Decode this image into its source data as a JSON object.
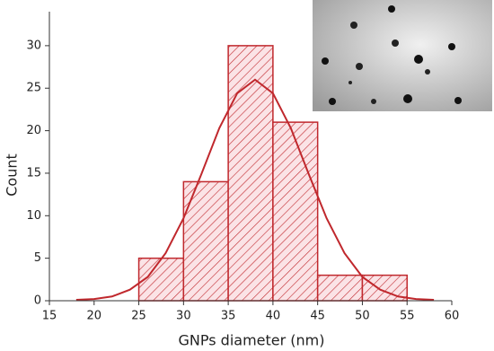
{
  "chart_data": {
    "type": "histogram",
    "xlabel": "GNPs diameter (nm)",
    "ylabel": "Count",
    "bins": [
      25,
      30,
      35,
      40,
      45,
      50,
      55
    ],
    "values": [
      5,
      14,
      30,
      21,
      3,
      3
    ],
    "color": "#c0282d",
    "xlim": [
      15,
      60
    ],
    "xticks": [
      15,
      20,
      25,
      30,
      35,
      40,
      45,
      50,
      55,
      60
    ],
    "ylim": [
      0,
      34
    ],
    "yticks": [
      0,
      5,
      10,
      15,
      20,
      25,
      30
    ],
    "fit": {
      "x": [
        18,
        20,
        22,
        24,
        26,
        28,
        30,
        32,
        34,
        36,
        38,
        40,
        42,
        44,
        46,
        48,
        50,
        52,
        54,
        56,
        58
      ],
      "values": [
        0.1,
        0.2,
        0.5,
        1.3,
        2.8,
        5.6,
        9.7,
        14.9,
        20.3,
        24.4,
        26,
        24.4,
        20.3,
        14.9,
        9.7,
        5.6,
        2.8,
        1.3,
        0.5,
        0.2,
        0.1
      ]
    }
  }
}
